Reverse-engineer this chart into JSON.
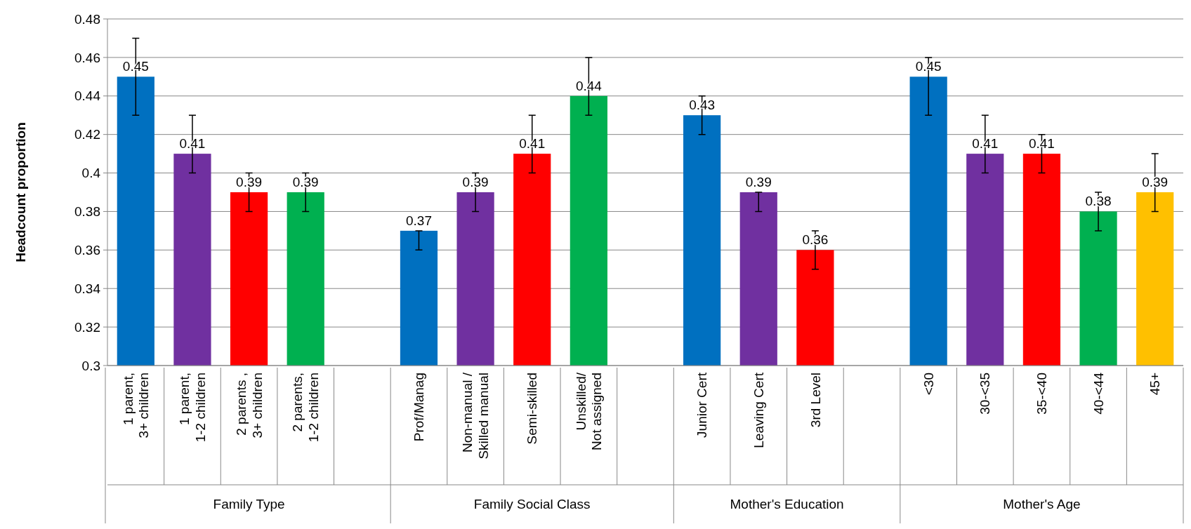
{
  "chart_data": {
    "type": "bar",
    "ylabel": "Headcount proportion",
    "categories": [
      "1 parent, 3+ children",
      "1 parent, 1-2 children",
      "2 parents , 3+ children",
      "2 parents, 1-2 children",
      null,
      "Prof/Manag",
      "Non-manual / Skilled manual",
      "Semi-skilled",
      "Unskilled/ Not assigned",
      null,
      "Junior Cert",
      "Leaving Cert",
      "3rd Level",
      null,
      "<30",
      "30-<35",
      "35-<40",
      "40-<44",
      "45+"
    ],
    "values": [
      0.45,
      0.41,
      0.39,
      0.39,
      null,
      0.37,
      0.39,
      0.41,
      0.44,
      null,
      0.43,
      0.39,
      0.36,
      null,
      0.45,
      0.41,
      0.41,
      0.38,
      0.39
    ],
    "colors": [
      "#0070c0",
      "#7030a0",
      "#ff0000",
      "#00b050",
      null,
      "#0070c0",
      "#7030a0",
      "#ff0000",
      "#00b050",
      null,
      "#0070c0",
      "#7030a0",
      "#ff0000",
      null,
      "#0070c0",
      "#7030a0",
      "#ff0000",
      "#00b050",
      "#ffc000"
    ],
    "errors": [
      [
        0.43,
        0.47
      ],
      [
        0.4,
        0.43
      ],
      [
        0.38,
        0.4
      ],
      [
        0.38,
        0.4
      ],
      null,
      [
        0.36,
        0.37
      ],
      [
        0.38,
        0.4
      ],
      [
        0.4,
        0.43
      ],
      [
        0.43,
        0.46
      ],
      null,
      [
        0.42,
        0.44
      ],
      [
        0.38,
        0.39
      ],
      [
        0.35,
        0.37
      ],
      null,
      [
        0.43,
        0.46
      ],
      [
        0.4,
        0.43
      ],
      [
        0.4,
        0.42
      ],
      [
        0.37,
        0.39
      ],
      [
        0.38,
        0.41
      ]
    ],
    "annotations": [
      "Family Type",
      "Family Social Class",
      "Mother's Education",
      "Mother's Age"
    ],
    "data_labels": true,
    "grid": "y",
    "ylim": [
      0.3,
      0.48
    ],
    "yticks": [
      0.3,
      0.32,
      0.34,
      0.36,
      0.38,
      0.4,
      0.42,
      0.44,
      0.46,
      0.48
    ]
  }
}
